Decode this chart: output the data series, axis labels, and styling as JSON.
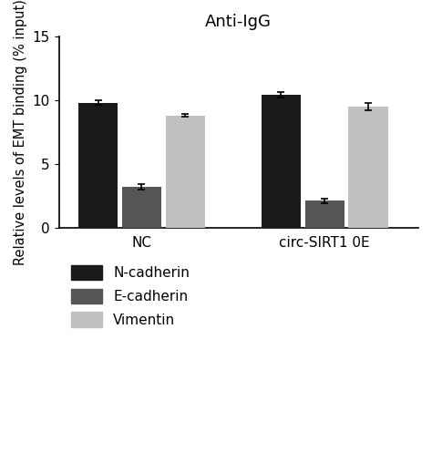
{
  "title": "Anti-IgG",
  "ylabel": "Relative levels of EMT binding (% input)",
  "groups": [
    "NC",
    "circ-SIRT1 0E"
  ],
  "series": [
    "N-cadherin",
    "E-cadherin",
    "Vimentin"
  ],
  "values": [
    [
      9.8,
      3.2,
      8.8
    ],
    [
      10.4,
      2.1,
      9.5
    ]
  ],
  "errors": [
    [
      0.18,
      0.18,
      0.12
    ],
    [
      0.22,
      0.18,
      0.28
    ]
  ],
  "bar_colors": [
    "#1a1a1a",
    "#555555",
    "#c0c0c0"
  ],
  "ylim": [
    0,
    15
  ],
  "yticks": [
    0,
    5,
    10,
    15
  ],
  "legend_labels": [
    "N-cadherin",
    "E-cadherin",
    "Vimentin"
  ],
  "bar_width": 0.18,
  "group_centers": [
    0.38,
    1.22
  ],
  "title_fontsize": 13,
  "label_fontsize": 10.5,
  "tick_fontsize": 11,
  "legend_fontsize": 11
}
